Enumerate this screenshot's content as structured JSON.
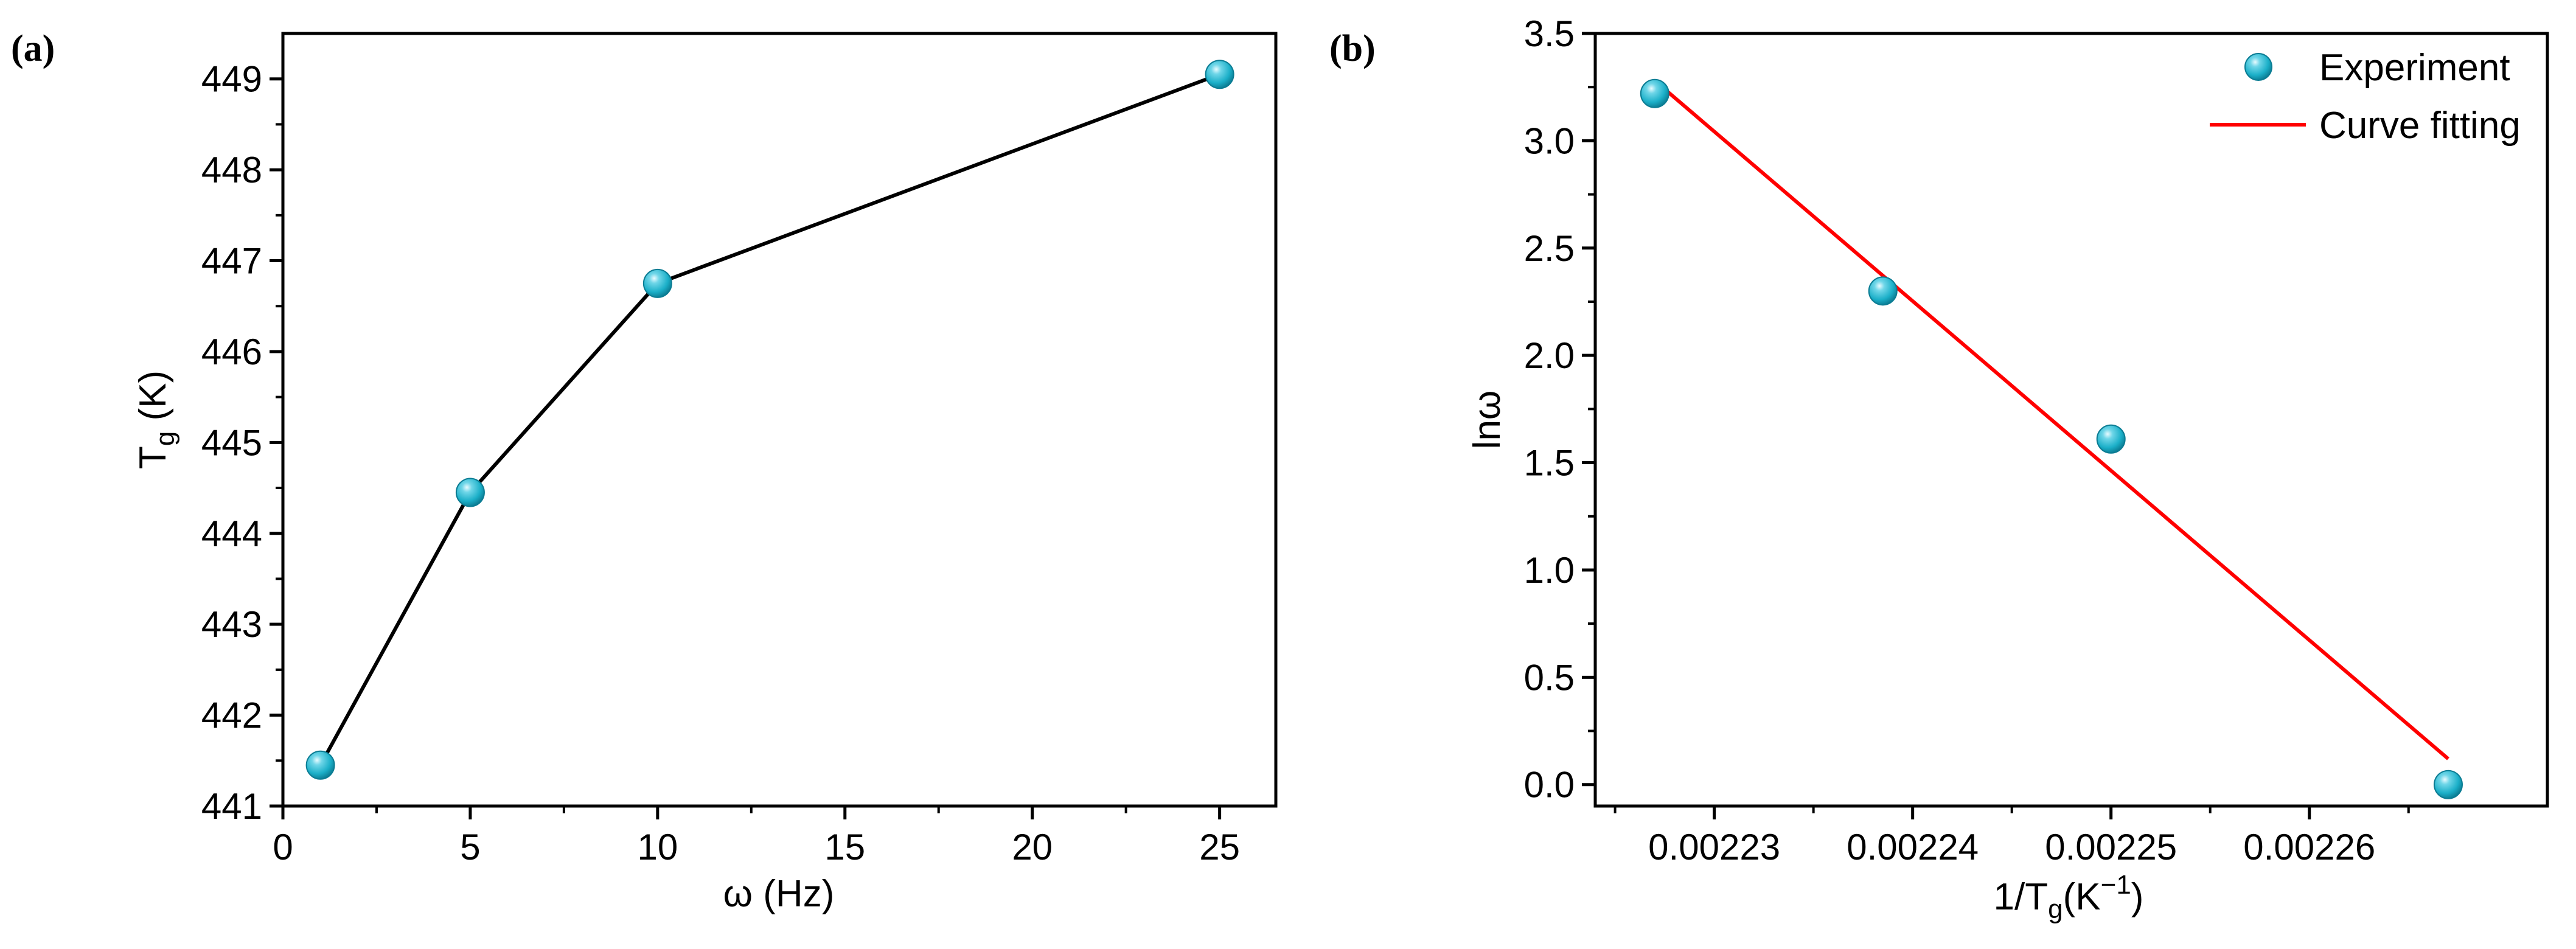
{
  "figure": {
    "panel_a_label": "(a)",
    "panel_b_label": "(b)"
  },
  "chart_data": [
    {
      "type": "line",
      "panel": "a",
      "title": "",
      "xlabel": "ω (Hz)",
      "ylabel_main": "T",
      "ylabel_sub": "g",
      "ylabel_tail": " (K)",
      "xlim": [
        0,
        26.5
      ],
      "ylim": [
        441,
        449.5
      ],
      "xticks": [
        0,
        5,
        10,
        15,
        20,
        25
      ],
      "yticks": [
        441,
        442,
        443,
        444,
        445,
        446,
        447,
        448,
        449
      ],
      "x": [
        1,
        5,
        10,
        25
      ],
      "y": [
        441.45,
        444.45,
        446.75,
        449.05
      ],
      "marker_color": "#1BAFC8",
      "line_color": "#000000",
      "grid": false
    },
    {
      "type": "scatter",
      "panel": "b",
      "title": "",
      "xlabel_main": "1/T",
      "xlabel_sub": "g",
      "xlabel_paren": "(K",
      "xlabel_sup": "−1",
      "xlabel_close": ")",
      "ylabel": "lnω",
      "xlim": [
        0.002224,
        0.002272
      ],
      "ylim": [
        -0.1,
        3.5
      ],
      "xticks": [
        0.00223,
        0.00224,
        0.00225,
        0.00226
      ],
      "xtick_labels": [
        "0.00223",
        "0.00224",
        "0.00225",
        "0.00226"
      ],
      "yticks": [
        0.0,
        0.5,
        1.0,
        1.5,
        2.0,
        2.5,
        3.0,
        3.5
      ],
      "ytick_labels": [
        "0.0",
        "0.5",
        "1.0",
        "1.5",
        "2.0",
        "2.5",
        "3.0",
        "3.5"
      ],
      "series": [
        {
          "name": "Experiment",
          "kind": "scatter",
          "x": [
            0.002227,
            0.0022385,
            0.00225,
            0.002267
          ],
          "y": [
            3.22,
            2.3,
            1.61,
            0.0
          ],
          "color": "#1BAFC8"
        },
        {
          "name": "Curve fitting",
          "kind": "line",
          "x": [
            0.002227,
            0.002267
          ],
          "y": [
            3.28,
            0.12
          ],
          "color": "#FF0000"
        }
      ],
      "legend_position": "top-right",
      "grid": false
    }
  ]
}
